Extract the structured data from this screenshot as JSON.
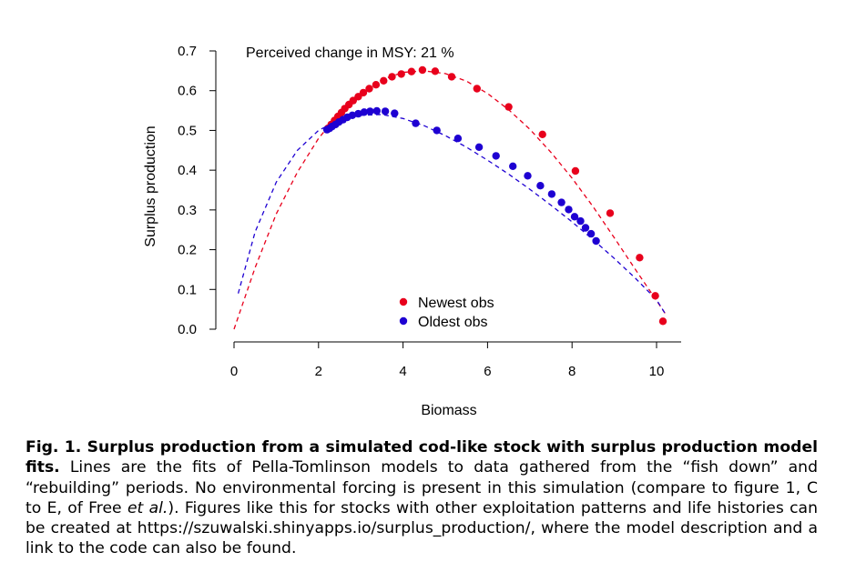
{
  "chart_data": {
    "type": "scatter",
    "title": "",
    "annotation": "Perceived change in MSY:  21 %",
    "xlabel": "Biomass",
    "ylabel": "Surplus production",
    "xlim": [
      0,
      10.4
    ],
    "ylim": [
      0,
      0.7
    ],
    "x_ticks": [
      0,
      2,
      4,
      6,
      8,
      10
    ],
    "y_ticks": [
      "0.0",
      "0.1",
      "0.2",
      "0.3",
      "0.4",
      "0.5",
      "0.6",
      "0.7"
    ],
    "legend_position": "bottom-center",
    "series": [
      {
        "name": "Newest obs",
        "color": "#e8001c",
        "points": [
          [
            2.22,
            0.505
          ],
          [
            2.3,
            0.515
          ],
          [
            2.38,
            0.525
          ],
          [
            2.46,
            0.535
          ],
          [
            2.54,
            0.545
          ],
          [
            2.62,
            0.555
          ],
          [
            2.72,
            0.565
          ],
          [
            2.82,
            0.575
          ],
          [
            2.94,
            0.585
          ],
          [
            3.06,
            0.595
          ],
          [
            3.2,
            0.605
          ],
          [
            3.36,
            0.615
          ],
          [
            3.54,
            0.625
          ],
          [
            3.74,
            0.635
          ],
          [
            3.96,
            0.642
          ],
          [
            4.2,
            0.648
          ],
          [
            4.46,
            0.652
          ],
          [
            4.76,
            0.649
          ],
          [
            5.15,
            0.635
          ],
          [
            5.75,
            0.605
          ],
          [
            6.5,
            0.559
          ],
          [
            7.3,
            0.49
          ],
          [
            8.08,
            0.398
          ],
          [
            8.9,
            0.292
          ],
          [
            9.6,
            0.18
          ],
          [
            9.97,
            0.084
          ],
          [
            10.15,
            0.02
          ]
        ],
        "fit": [
          [
            0.0,
            0.0
          ],
          [
            0.5,
            0.155
          ],
          [
            1.0,
            0.29
          ],
          [
            1.5,
            0.395
          ],
          [
            2.0,
            0.48
          ],
          [
            2.5,
            0.545
          ],
          [
            3.0,
            0.595
          ],
          [
            3.5,
            0.628
          ],
          [
            4.0,
            0.646
          ],
          [
            4.5,
            0.65
          ],
          [
            5.0,
            0.643
          ],
          [
            5.5,
            0.624
          ],
          [
            6.0,
            0.593
          ],
          [
            6.5,
            0.552
          ],
          [
            7.0,
            0.503
          ],
          [
            7.5,
            0.445
          ],
          [
            8.0,
            0.38
          ],
          [
            8.5,
            0.308
          ],
          [
            9.0,
            0.23
          ],
          [
            9.5,
            0.15
          ],
          [
            10.0,
            0.072
          ],
          [
            10.2,
            0.04
          ]
        ]
      },
      {
        "name": "Oldest obs",
        "color": "#1e00d2",
        "points": [
          [
            2.2,
            0.502
          ],
          [
            2.26,
            0.505
          ],
          [
            2.32,
            0.51
          ],
          [
            2.4,
            0.515
          ],
          [
            2.48,
            0.521
          ],
          [
            2.58,
            0.527
          ],
          [
            2.68,
            0.533
          ],
          [
            2.8,
            0.538
          ],
          [
            2.94,
            0.542
          ],
          [
            3.08,
            0.546
          ],
          [
            3.22,
            0.548
          ],
          [
            3.38,
            0.549
          ],
          [
            3.58,
            0.548
          ],
          [
            3.8,
            0.543
          ],
          [
            4.3,
            0.518
          ],
          [
            4.8,
            0.5
          ],
          [
            5.3,
            0.48
          ],
          [
            5.8,
            0.458
          ],
          [
            6.2,
            0.436
          ],
          [
            6.6,
            0.41
          ],
          [
            6.95,
            0.386
          ],
          [
            7.25,
            0.361
          ],
          [
            7.52,
            0.34
          ],
          [
            7.75,
            0.319
          ],
          [
            7.92,
            0.301
          ],
          [
            8.06,
            0.283
          ],
          [
            8.2,
            0.272
          ],
          [
            8.32,
            0.255
          ],
          [
            8.45,
            0.24
          ],
          [
            8.57,
            0.222
          ]
        ],
        "fit": [
          [
            0.1,
            0.09
          ],
          [
            0.5,
            0.245
          ],
          [
            1.0,
            0.37
          ],
          [
            1.5,
            0.45
          ],
          [
            2.0,
            0.5
          ],
          [
            2.5,
            0.527
          ],
          [
            3.0,
            0.538
          ],
          [
            3.5,
            0.54
          ],
          [
            4.0,
            0.53
          ],
          [
            4.5,
            0.512
          ],
          [
            5.0,
            0.487
          ],
          [
            5.5,
            0.458
          ],
          [
            6.0,
            0.425
          ],
          [
            6.5,
            0.39
          ],
          [
            7.0,
            0.352
          ],
          [
            7.5,
            0.312
          ],
          [
            8.0,
            0.27
          ],
          [
            8.5,
            0.225
          ],
          [
            9.0,
            0.178
          ],
          [
            9.5,
            0.128
          ],
          [
            10.0,
            0.074
          ],
          [
            10.2,
            0.04
          ]
        ]
      }
    ]
  },
  "caption": {
    "title": "Fig. 1. Surplus production from a simulated cod-like stock with surplus production model fits.",
    "body_1": " Lines are the fits of Pella-Tomlinson models to data gathered from the “fish down” and “rebuilding” periods. No environmental forcing is present in this simulation (compare to figure 1, C to E, of Free ",
    "etal": "et al.",
    "body_2": "). Figures like this for stocks with other exploitation patterns and life histories can be created at https://szuwalski.shinyapps.io/surplus_production/, where the model description and a link to the code can also be found."
  }
}
